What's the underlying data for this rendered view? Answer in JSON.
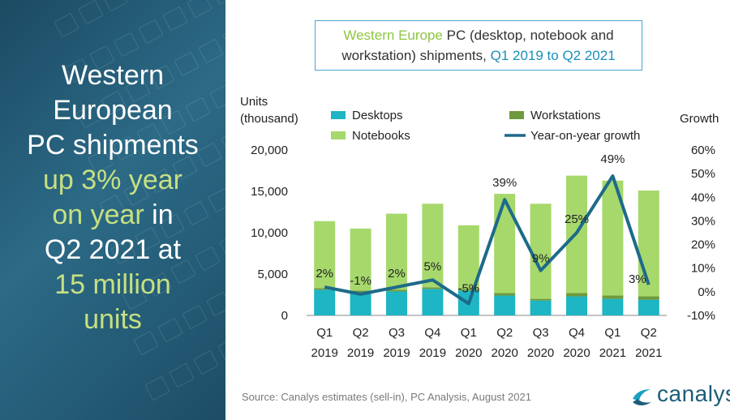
{
  "left_panel": {
    "line1": "Western",
    "line2": "European",
    "line3": "PC shipments",
    "line4": "up 3% year",
    "line5a": "on year",
    "line5b": " in",
    "line6": "Q2 2021 at",
    "line7": "15 million",
    "line8": "units"
  },
  "title": {
    "part1": "Western Europe",
    "part2": " PC (desktop, notebook and",
    "part3": "workstation) shipments, ",
    "part4": "Q1 2019 to Q2 2021"
  },
  "footer": {
    "source": "Source:  Canalys estimates (sell-in), PC Analysis, August 2021"
  },
  "logo": {
    "text": "canalys",
    "icon": "canalys-logo-icon"
  },
  "colors": {
    "desktops": "#1eb5c4",
    "workstations": "#6f9a3d",
    "notebooks": "#a6d86c",
    "growth": "#1d6a8a",
    "left_bg": "#1f5470",
    "highlight": "#c6e082"
  },
  "chart_data": {
    "type": "bar",
    "stacked": true,
    "categories": [
      "Q1 2019",
      "Q2 2019",
      "Q3 2019",
      "Q4 2019",
      "Q1 2020",
      "Q2 2020",
      "Q3 2020",
      "Q4 2020",
      "Q1 2021",
      "Q2 2021"
    ],
    "x_tick_quarter": [
      "Q1",
      "Q2",
      "Q3",
      "Q4",
      "Q1",
      "Q2",
      "Q3",
      "Q4",
      "Q1",
      "Q2"
    ],
    "x_tick_year": [
      "2019",
      "2019",
      "2019",
      "2019",
      "2020",
      "2020",
      "2020",
      "2020",
      "2021",
      "2021"
    ],
    "series": [
      {
        "name": "Desktops",
        "values": [
          3100,
          2800,
          2900,
          3200,
          3000,
          2400,
          1800,
          2300,
          2000,
          1900
        ]
      },
      {
        "name": "Workstations",
        "values": [
          200,
          200,
          200,
          200,
          200,
          300,
          200,
          400,
          400,
          400
        ]
      },
      {
        "name": "Notebooks",
        "values": [
          8100,
          7500,
          9200,
          10100,
          7700,
          12000,
          11500,
          14200,
          13900,
          12800
        ]
      }
    ],
    "line_series": {
      "name": "Year-on-year growth",
      "values": [
        2,
        -1,
        2,
        5,
        -5,
        39,
        9,
        25,
        49,
        3
      ],
      "labels": [
        "2%",
        "-1%",
        "2%",
        "5%",
        "-5%",
        "39%",
        "9%",
        "25%",
        "49%",
        "3%"
      ]
    },
    "ylabel_left_line1": "Units",
    "ylabel_left_line2": "(thousand)",
    "ylabel_right": "Growth",
    "ylim_left": [
      0,
      20000
    ],
    "yticks_left": [
      "0",
      "5,000",
      "10,000",
      "15,000",
      "20,000"
    ],
    "ylim_right": [
      -10,
      60
    ],
    "yticks_right": [
      "-10%",
      "0%",
      "10%",
      "20%",
      "30%",
      "40%",
      "50%",
      "60%"
    ],
    "legend": [
      "Desktops",
      "Workstations",
      "Notebooks",
      "Year-on-year growth"
    ]
  }
}
